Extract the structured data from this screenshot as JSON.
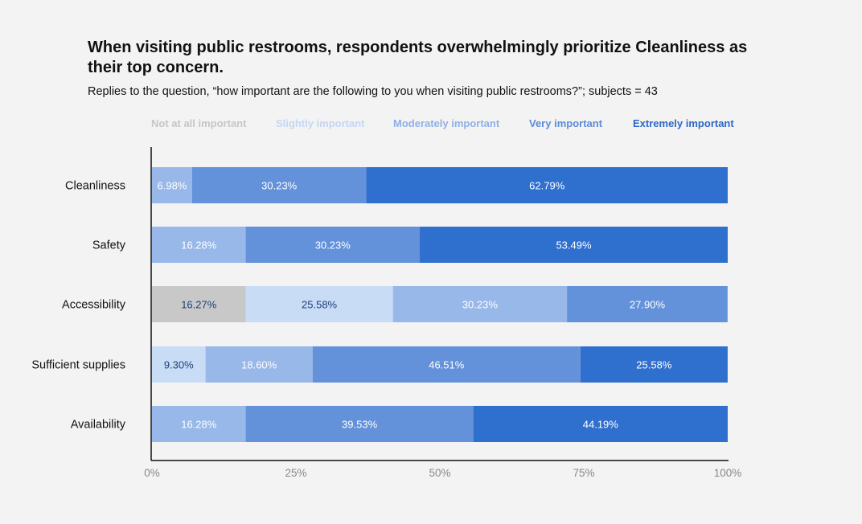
{
  "title": "When visiting public restrooms, respondents overwhelmingly prioritize Cleanliness as their top concern.",
  "subtitle": "Replies to the question, “how important are the following to you when visiting public restrooms?”; subjects = 43",
  "legend": [
    {
      "label": "Not at all important",
      "color": "#c8c8c8",
      "text_color": "#c6c6c6"
    },
    {
      "label": "Slightly important",
      "color": "#c9dcf6",
      "text_color": "#c3d7f3"
    },
    {
      "label": "Moderately important",
      "color": "#97b8e8",
      "text_color": "#8fb1e6"
    },
    {
      "label": "Very important",
      "color": "#6392da",
      "text_color": "#5c8bd8"
    },
    {
      "label": "Extremely important",
      "color": "#2f6fce",
      "text_color": "#2d67c6"
    }
  ],
  "chart_data": {
    "type": "bar",
    "orientation": "horizontal",
    "stacked": true,
    "categories": [
      "Cleanliness",
      "Safety",
      "Accessibility",
      "Sufficient supplies",
      "Availability"
    ],
    "series": [
      {
        "name": "Not at all important",
        "values": [
          0,
          0,
          16.27,
          0,
          0
        ],
        "labels": [
          "",
          "",
          "16.27%",
          "",
          ""
        ]
      },
      {
        "name": "Slightly important",
        "values": [
          0,
          0,
          25.58,
          9.3,
          0
        ],
        "labels": [
          "",
          "",
          "25.58%",
          "9.30%",
          ""
        ]
      },
      {
        "name": "Moderately important",
        "values": [
          6.98,
          16.28,
          30.23,
          18.6,
          16.28
        ],
        "labels": [
          "6.98%",
          "16.28%",
          "30.23%",
          "18.60%",
          "16.28%"
        ]
      },
      {
        "name": "Very important",
        "values": [
          30.23,
          30.23,
          27.9,
          46.51,
          39.53
        ],
        "labels": [
          "30.23%",
          "30.23%",
          "27.90%",
          "46.51%",
          "39.53%"
        ]
      },
      {
        "name": "Extremely important",
        "values": [
          62.79,
          53.49,
          0,
          25.58,
          44.19
        ],
        "labels": [
          "62.79%",
          "53.49%",
          "",
          "25.58%",
          "44.19%"
        ]
      }
    ],
    "xlim": [
      0,
      100
    ],
    "xticks": [
      "0%",
      "25%",
      "50%",
      "75%",
      "100%"
    ],
    "legend_position": "top",
    "grid": false
  }
}
